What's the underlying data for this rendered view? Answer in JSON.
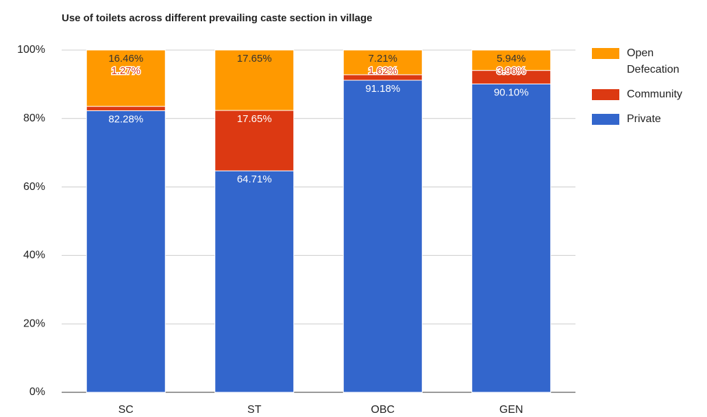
{
  "chart_data": {
    "type": "stacked_bar",
    "title": "Use of toilets across different prevailing caste section in village",
    "categories": [
      "SC",
      "ST",
      "OBC",
      "GEN"
    ],
    "series": [
      {
        "name": "Private",
        "color": "#3366cc",
        "values": [
          82.28,
          64.71,
          91.18,
          90.1
        ],
        "value_labels": [
          "82.28%",
          "64.71%",
          "91.18%",
          "90.10%"
        ]
      },
      {
        "name": "Community",
        "color": "#dc3912",
        "values": [
          1.27,
          17.65,
          1.62,
          3.96
        ],
        "value_labels": [
          "1.27%",
          "17.65%",
          "1.62%",
          "3.96%"
        ]
      },
      {
        "name": "Open Defecation",
        "color": "#ff9900",
        "values": [
          16.46,
          17.65,
          7.21,
          5.94
        ],
        "value_labels": [
          "16.46%",
          "17.65%",
          "7.21%",
          "5.94%"
        ]
      }
    ],
    "ylim": [
      0,
      100
    ],
    "yticks": [
      {
        "value": 0,
        "label": "0%"
      },
      {
        "value": 20,
        "label": "20%"
      },
      {
        "value": 40,
        "label": "40%"
      },
      {
        "value": 60,
        "label": "60%"
      },
      {
        "value": 80,
        "label": "80%"
      },
      {
        "value": 100,
        "label": "100%"
      }
    ],
    "grid": true,
    "legend": "right"
  }
}
